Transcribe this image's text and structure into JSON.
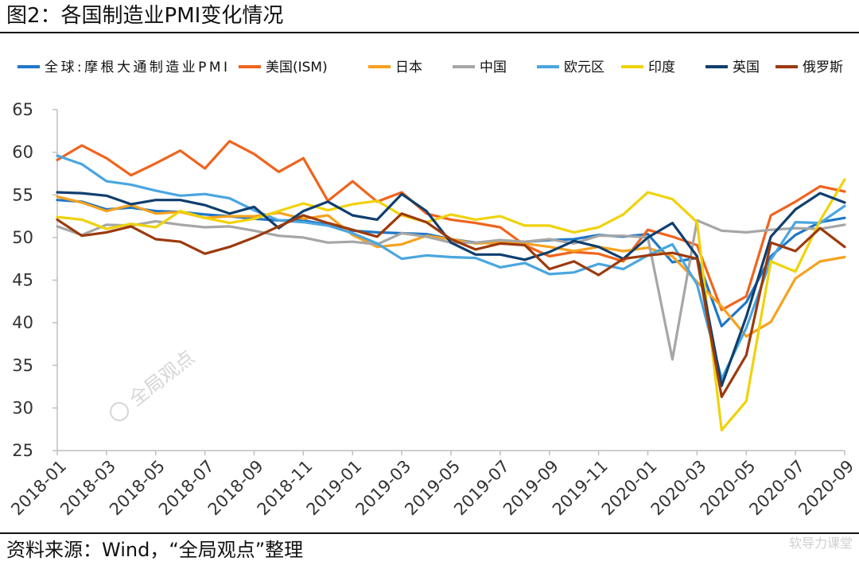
{
  "header": {
    "title": "图2：各国制造业PMI变化情况"
  },
  "footer": {
    "source": "资料来源：Wind，“全局观点”整理",
    "stamp": "软导力课堂"
  },
  "watermark": {
    "text": "全局观点"
  },
  "chart_data": {
    "type": "line",
    "title": "",
    "xlabel": "",
    "ylabel": "",
    "ylim": [
      25,
      65
    ],
    "yticks": [
      25,
      30,
      35,
      40,
      45,
      50,
      55,
      60,
      65
    ],
    "x_tick_labels": [
      "2018-01",
      "2018-03",
      "2018-05",
      "2018-07",
      "2018-09",
      "2018-11",
      "2019-01",
      "2019-03",
      "2019-05",
      "2019-07",
      "2019-09",
      "2019-11",
      "2020-01",
      "2020-03",
      "2020-05",
      "2020-07",
      "2020-09"
    ],
    "x": [
      "2018-01",
      "2018-02",
      "2018-03",
      "2018-04",
      "2018-05",
      "2018-06",
      "2018-07",
      "2018-08",
      "2018-09",
      "2018-10",
      "2018-11",
      "2018-12",
      "2019-01",
      "2019-02",
      "2019-03",
      "2019-04",
      "2019-05",
      "2019-06",
      "2019-07",
      "2019-08",
      "2019-09",
      "2019-10",
      "2019-11",
      "2019-12",
      "2020-01",
      "2020-02",
      "2020-03",
      "2020-04",
      "2020-05",
      "2020-06",
      "2020-07",
      "2020-08",
      "2020-09"
    ],
    "grid": false,
    "legend_position": "top",
    "series": [
      {
        "name": "全球:摩根大通制造业PMI",
        "color": "#1f77c8",
        "values": [
          54.4,
          54.2,
          53.3,
          53.5,
          53.1,
          53.0,
          52.7,
          52.5,
          52.2,
          52.0,
          52.0,
          51.5,
          50.8,
          50.6,
          50.5,
          50.4,
          49.8,
          49.4,
          49.3,
          49.5,
          49.7,
          49.8,
          50.3,
          50.1,
          50.4,
          47.1,
          47.6,
          39.6,
          42.4,
          47.8,
          50.3,
          51.8,
          52.3
        ]
      },
      {
        "name": "美国(ISM)",
        "color": "#f0641e",
        "values": [
          59.1,
          60.8,
          59.3,
          57.3,
          58.7,
          60.2,
          58.1,
          61.3,
          59.8,
          57.7,
          59.3,
          54.3,
          56.6,
          54.2,
          55.3,
          52.8,
          52.1,
          51.7,
          51.2,
          49.1,
          47.8,
          48.3,
          48.1,
          47.2,
          50.9,
          50.1,
          49.1,
          41.5,
          43.1,
          52.6,
          54.2,
          56.0,
          55.4
        ]
      },
      {
        "name": "日本",
        "color": "#f6a21e",
        "values": [
          54.8,
          54.1,
          53.1,
          53.8,
          52.8,
          53.0,
          52.3,
          52.5,
          52.5,
          52.9,
          52.2,
          52.6,
          50.3,
          48.9,
          49.2,
          50.2,
          49.8,
          49.3,
          49.4,
          49.3,
          48.9,
          48.4,
          48.9,
          48.4,
          48.8,
          47.8,
          44.8,
          41.9,
          38.4,
          40.1,
          45.2,
          47.2,
          47.7
        ]
      },
      {
        "name": "中国",
        "color": "#a6a6a6",
        "values": [
          51.3,
          50.3,
          51.5,
          51.4,
          51.9,
          51.5,
          51.2,
          51.3,
          50.8,
          50.2,
          50.0,
          49.4,
          49.5,
          49.2,
          50.5,
          50.1,
          49.4,
          49.4,
          49.7,
          49.5,
          49.8,
          49.3,
          50.2,
          50.2,
          50.0,
          35.7,
          52.0,
          50.8,
          50.6,
          50.9,
          51.1,
          51.0,
          51.5
        ]
      },
      {
        "name": "欧元区",
        "color": "#4aa6e0",
        "values": [
          59.6,
          58.6,
          56.6,
          56.2,
          55.5,
          54.9,
          55.1,
          54.6,
          53.2,
          52.0,
          51.8,
          51.4,
          50.5,
          49.3,
          47.5,
          47.9,
          47.7,
          47.6,
          46.5,
          47.0,
          45.7,
          45.9,
          46.9,
          46.3,
          47.9,
          49.2,
          44.5,
          33.4,
          39.4,
          47.4,
          51.8,
          51.7,
          53.7
        ]
      },
      {
        "name": "印度",
        "color": "#f0d20a",
        "values": [
          52.4,
          52.1,
          51.0,
          51.6,
          51.2,
          53.1,
          52.3,
          51.7,
          52.2,
          53.1,
          54.0,
          53.2,
          53.9,
          54.3,
          52.6,
          51.8,
          52.7,
          52.1,
          52.5,
          51.4,
          51.4,
          50.6,
          51.2,
          52.7,
          55.3,
          54.5,
          51.8,
          27.4,
          30.8,
          47.2,
          46.0,
          52.0,
          56.8
        ]
      },
      {
        "name": "英国",
        "color": "#0f3f6e",
        "values": [
          55.3,
          55.2,
          54.9,
          53.9,
          54.4,
          54.4,
          53.8,
          52.8,
          53.6,
          51.1,
          53.1,
          54.2,
          52.6,
          52.1,
          55.1,
          53.1,
          49.4,
          48.0,
          48.0,
          47.4,
          48.3,
          49.6,
          48.9,
          47.5,
          50.0,
          51.7,
          47.8,
          32.6,
          40.7,
          50.1,
          53.3,
          55.2,
          54.1
        ]
      },
      {
        "name": "俄罗斯",
        "color": "#9c3a0c",
        "values": [
          52.1,
          50.2,
          50.6,
          51.3,
          49.8,
          49.5,
          48.1,
          48.9,
          50.0,
          51.3,
          52.6,
          51.7,
          50.9,
          50.1,
          52.8,
          51.8,
          49.8,
          48.6,
          49.3,
          49.1,
          46.3,
          47.2,
          45.6,
          47.5,
          47.9,
          48.2,
          47.5,
          31.3,
          36.2,
          49.4,
          48.4,
          51.1,
          48.9
        ]
      }
    ]
  }
}
